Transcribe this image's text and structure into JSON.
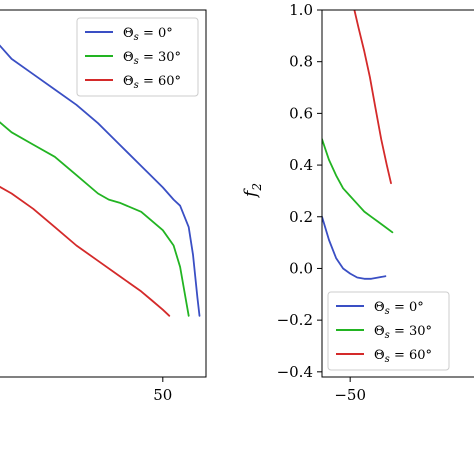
{
  "chart_data": [
    {
      "type": "line",
      "title": "",
      "xlabel": "",
      "ylabel": "",
      "xlim": [
        -30,
        70
      ],
      "ylim": [
        -0.2,
        1.0
      ],
      "x_ticks": [
        {
          "value": 50,
          "label": "50"
        }
      ],
      "y_ticks": [],
      "grid": false,
      "legend": "top-right",
      "series": [
        {
          "name": "Θs = 0°",
          "color": "#3a4fc4",
          "points": [
            [
              -30,
              0.92
            ],
            [
              -20,
              0.84
            ],
            [
              -10,
              0.79
            ],
            [
              0,
              0.74
            ],
            [
              10,
              0.69
            ],
            [
              20,
              0.63
            ],
            [
              30,
              0.56
            ],
            [
              40,
              0.49
            ],
            [
              50,
              0.42
            ],
            [
              55,
              0.38
            ],
            [
              58,
              0.36
            ],
            [
              62,
              0.29
            ],
            [
              64,
              0.2
            ],
            [
              66,
              0.06
            ],
            [
              67,
              0.0
            ]
          ]
        },
        {
          "name": "Θs = 30°",
          "color": "#22b422",
          "points": [
            [
              -30,
              0.66
            ],
            [
              -20,
              0.6
            ],
            [
              -10,
              0.56
            ],
            [
              0,
              0.52
            ],
            [
              10,
              0.46
            ],
            [
              20,
              0.4
            ],
            [
              25,
              0.38
            ],
            [
              30,
              0.37
            ],
            [
              40,
              0.34
            ],
            [
              50,
              0.28
            ],
            [
              55,
              0.23
            ],
            [
              58,
              0.16
            ],
            [
              60,
              0.08
            ],
            [
              62,
              0.0
            ]
          ]
        },
        {
          "name": "Θs = 60°",
          "color": "#d42a2a",
          "points": [
            [
              -30,
              0.44
            ],
            [
              -20,
              0.4
            ],
            [
              -10,
              0.35
            ],
            [
              0,
              0.29
            ],
            [
              10,
              0.23
            ],
            [
              20,
              0.18
            ],
            [
              30,
              0.13
            ],
            [
              40,
              0.08
            ],
            [
              45,
              0.05
            ],
            [
              50,
              0.02
            ],
            [
              53,
              0.0
            ]
          ]
        }
      ]
    },
    {
      "type": "line",
      "title": "",
      "xlabel": "",
      "ylabel": "f_2",
      "xlim": [
        -70,
        45
      ],
      "ylim": [
        -0.42,
        1.0
      ],
      "x_ticks": [
        {
          "value": -50,
          "label": "−50"
        }
      ],
      "y_ticks": [
        {
          "value": 1.0,
          "label": "1.0"
        },
        {
          "value": 0.8,
          "label": "0.8"
        },
        {
          "value": 0.6,
          "label": "0.6"
        },
        {
          "value": 0.4,
          "label": "0.4"
        },
        {
          "value": 0.2,
          "label": "0.2"
        },
        {
          "value": 0.0,
          "label": "0.0"
        },
        {
          "value": -0.2,
          "label": "−0.2"
        },
        {
          "value": -0.4,
          "label": "−0.4"
        }
      ],
      "grid": false,
      "legend": "bottom-left",
      "series": [
        {
          "name": "Θs = 0°",
          "color": "#3a4fc4",
          "points": [
            [
              -70,
              0.2
            ],
            [
              -65,
              0.11
            ],
            [
              -60,
              0.04
            ],
            [
              -55,
              0.0
            ],
            [
              -50,
              -0.02
            ],
            [
              -45,
              -0.035
            ],
            [
              -40,
              -0.04
            ],
            [
              -35,
              -0.04
            ],
            [
              -30,
              -0.035
            ],
            [
              -25,
              -0.03
            ]
          ]
        },
        {
          "name": "Θs = 30°",
          "color": "#22b422",
          "points": [
            [
              -70,
              0.5
            ],
            [
              -65,
              0.42
            ],
            [
              -60,
              0.36
            ],
            [
              -55,
              0.31
            ],
            [
              -50,
              0.28
            ],
            [
              -45,
              0.25
            ],
            [
              -40,
              0.22
            ],
            [
              -35,
              0.2
            ],
            [
              -30,
              0.18
            ],
            [
              -25,
              0.16
            ],
            [
              -20,
              0.14
            ]
          ]
        },
        {
          "name": "Θs = 60°",
          "color": "#d42a2a",
          "points": [
            [
              -47,
              1.0
            ],
            [
              -44,
              0.93
            ],
            [
              -40,
              0.84
            ],
            [
              -36,
              0.74
            ],
            [
              -32,
              0.62
            ],
            [
              -28,
              0.5
            ],
            [
              -24,
              0.4
            ],
            [
              -21,
              0.33
            ]
          ]
        }
      ]
    }
  ]
}
